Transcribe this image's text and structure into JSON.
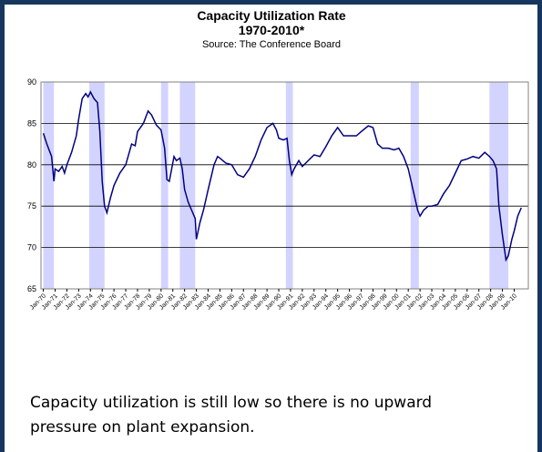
{
  "chart_data": {
    "type": "line",
    "title": "Capacity Utilization Rate",
    "subtitle": "1970-2010*",
    "source": "Source: The Conference Board",
    "xlim": [
      1969.8,
      2011.2
    ],
    "xticks": [
      {
        "value": 1970,
        "label": "Jan-70"
      },
      {
        "value": 1971,
        "label": "Jan-71"
      },
      {
        "value": 1972,
        "label": "Jan-72"
      },
      {
        "value": 1973,
        "label": "Jan-73"
      },
      {
        "value": 1974,
        "label": "Jan-74"
      },
      {
        "value": 1975,
        "label": "Jan-75"
      },
      {
        "value": 1976,
        "label": "Jan-76"
      },
      {
        "value": 1977,
        "label": "Jan-77"
      },
      {
        "value": 1978,
        "label": "Jan-78"
      },
      {
        "value": 1979,
        "label": "Jan-79"
      },
      {
        "value": 1980,
        "label": "Jan-80"
      },
      {
        "value": 1981,
        "label": "Jan-81"
      },
      {
        "value": 1982,
        "label": "Jan-82"
      },
      {
        "value": 1983,
        "label": "Jan-83"
      },
      {
        "value": 1984,
        "label": "Jan-84"
      },
      {
        "value": 1985,
        "label": "Jan-85"
      },
      {
        "value": 1986,
        "label": "Jan-86"
      },
      {
        "value": 1987,
        "label": "Jan-87"
      },
      {
        "value": 1988,
        "label": "Jan-88"
      },
      {
        "value": 1989,
        "label": "Jan-89"
      },
      {
        "value": 1990,
        "label": "Jan-90"
      },
      {
        "value": 1991,
        "label": "Jan-91"
      },
      {
        "value": 1992,
        "label": "Jan-92"
      },
      {
        "value": 1993,
        "label": "Jan-93"
      },
      {
        "value": 1994,
        "label": "Jan-94"
      },
      {
        "value": 1995,
        "label": "Jan-95"
      },
      {
        "value": 1996,
        "label": "Jan-96"
      },
      {
        "value": 1997,
        "label": "Jan-97"
      },
      {
        "value": 1998,
        "label": "Jan-98"
      },
      {
        "value": 1999,
        "label": "Jan-99"
      },
      {
        "value": 2000,
        "label": "Jan-00"
      },
      {
        "value": 2001,
        "label": "Jan-01"
      },
      {
        "value": 2002,
        "label": "Jan-02"
      },
      {
        "value": 2003,
        "label": "Jan-03"
      },
      {
        "value": 2004,
        "label": "Jan-04"
      },
      {
        "value": 2005,
        "label": "Jan-05"
      },
      {
        "value": 2006,
        "label": "Jan-06"
      },
      {
        "value": 2007,
        "label": "Jan-07"
      },
      {
        "value": 2008,
        "label": "Jan-08"
      },
      {
        "value": 2009,
        "label": "Jan-09"
      },
      {
        "value": 2010,
        "label": "Jan-10"
      }
    ],
    "ylim": [
      65,
      90
    ],
    "yticks": [
      65,
      70,
      75,
      80,
      85,
      90
    ],
    "grid": true,
    "recessions": [
      [
        1970.0,
        1970.9
      ],
      [
        1973.9,
        1975.2
      ],
      [
        1980.0,
        1980.6
      ],
      [
        1981.6,
        1982.9
      ],
      [
        1990.6,
        1991.2
      ],
      [
        2001.2,
        2001.9
      ],
      [
        2007.9,
        2009.5
      ]
    ],
    "recession_color": "#c8c8ff",
    "series": [
      {
        "color": "#000080",
        "x": [
          1970.0,
          1970.3,
          1970.7,
          1970.9,
          1971.0,
          1971.3,
          1971.6,
          1971.8,
          1972.0,
          1972.4,
          1972.8,
          1973.0,
          1973.3,
          1973.6,
          1973.8,
          1974.0,
          1974.3,
          1974.6,
          1974.8,
          1975.0,
          1975.2,
          1975.4,
          1975.7,
          1976.0,
          1976.5,
          1977.0,
          1977.5,
          1977.8,
          1978.0,
          1978.5,
          1978.9,
          1979.2,
          1979.6,
          1980.0,
          1980.3,
          1980.5,
          1980.7,
          1980.9,
          1981.1,
          1981.3,
          1981.6,
          1981.8,
          1982.0,
          1982.3,
          1982.6,
          1982.9,
          1983.0,
          1983.3,
          1983.6,
          1984.0,
          1984.5,
          1984.8,
          1985.0,
          1985.5,
          1986.0,
          1986.5,
          1987.0,
          1987.5,
          1988.0,
          1988.5,
          1989.0,
          1989.5,
          1989.8,
          1990.0,
          1990.4,
          1990.7,
          1990.9,
          1991.1,
          1991.3,
          1991.7,
          1992.0,
          1992.5,
          1993.0,
          1993.5,
          1994.0,
          1994.5,
          1995.0,
          1995.5,
          1996.0,
          1996.6,
          1997.0,
          1997.6,
          1998.0,
          1998.4,
          1998.8,
          1999.3,
          1999.8,
          2000.2,
          2000.6,
          2001.0,
          2001.4,
          2001.8,
          2002.0,
          2002.3,
          2002.7,
          2003.0,
          2003.5,
          2004.0,
          2004.5,
          2005.0,
          2005.5,
          2006.0,
          2006.5,
          2007.0,
          2007.5,
          2007.9,
          2008.2,
          2008.5,
          2008.7,
          2009.0,
          2009.3,
          2009.5,
          2009.8,
          2010.0,
          2010.3,
          2010.6
        ],
        "values": [
          83.8,
          82.5,
          81,
          78,
          79.5,
          79.2,
          79.8,
          79,
          80,
          81.5,
          83.5,
          85.5,
          88,
          88.6,
          88.2,
          88.8,
          88,
          87.5,
          84,
          78,
          75,
          74.2,
          76,
          77.5,
          79,
          80,
          82.5,
          82.3,
          84,
          85,
          86.5,
          86,
          84.8,
          84.2,
          82,
          78.2,
          78,
          79.5,
          81,
          80.5,
          80.8,
          79.5,
          77,
          75.5,
          74.5,
          73.5,
          71,
          73,
          74.5,
          77,
          80,
          81,
          80.8,
          80.2,
          80,
          78.8,
          78.5,
          79.5,
          81,
          83,
          84.5,
          85,
          84.2,
          83.2,
          83,
          83.2,
          80.5,
          78.8,
          79.5,
          80.5,
          79.8,
          80.5,
          81.2,
          81,
          82.2,
          83.5,
          84.5,
          83.5,
          83.5,
          83.5,
          84,
          84.7,
          84.5,
          82.5,
          82,
          82,
          81.8,
          82,
          81,
          79.5,
          77,
          74.5,
          73.8,
          74.5,
          75,
          75,
          75.2,
          76.5,
          77.5,
          79,
          80.5,
          80.7,
          81,
          80.8,
          81.5,
          81,
          80.5,
          79.5,
          75,
          71.5,
          68.5,
          69,
          71,
          72,
          73.8,
          74.8
        ]
      }
    ]
  },
  "note": "Capacity utilization is still low so there is no upward pressure on plant expansion."
}
